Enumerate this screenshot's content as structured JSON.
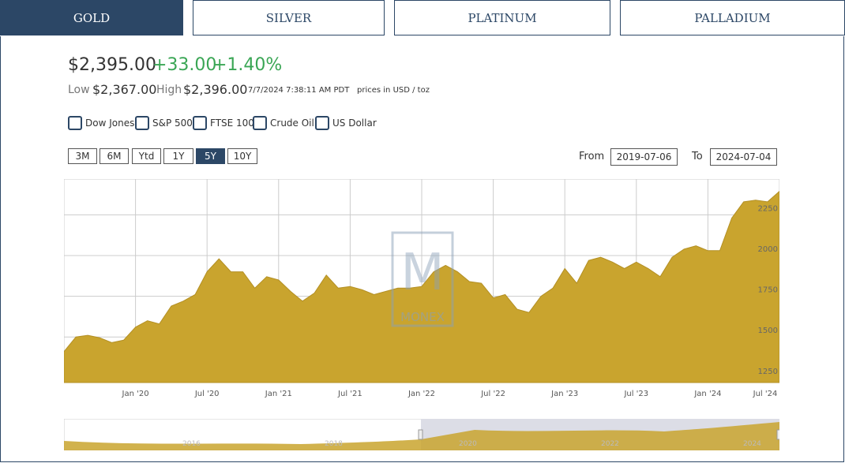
{
  "tabs": [
    "GOLD",
    "SILVER",
    "PLATINUM",
    "PALLADIUM"
  ],
  "header": {
    "price": "$2,395.00",
    "change": "+33.00",
    "change_pct": "+1.40%",
    "low_label": "Low",
    "low": "$2,367.00",
    "high_label": "High",
    "high": "$2,396.00",
    "timestamp": "7/7/2024 7:38:11 AM PDT",
    "units": "prices in USD / toz"
  },
  "compare": [
    "Dow Jones",
    "S&P 500",
    "FTSE 100",
    "Crude Oil",
    "US Dollar"
  ],
  "ranges": [
    "3M",
    "6M",
    "Ytd",
    "1Y",
    "5Y",
    "10Y"
  ],
  "dates": {
    "from_label": "From",
    "from": "2019-07-06",
    "to_label": "To",
    "to": "2024-07-04"
  },
  "watermark": "MONEX",
  "navigator": {
    "labels": [
      "2016",
      "2018",
      "2020",
      "2022",
      "2024"
    ]
  },
  "chart_data": {
    "type": "area",
    "x": [
      "2019-07",
      "2019-08",
      "2019-09",
      "2019-10",
      "2019-11",
      "2019-12",
      "2020-01",
      "2020-02",
      "2020-03",
      "2020-04",
      "2020-05",
      "2020-06",
      "2020-07",
      "2020-08",
      "2020-09",
      "2020-10",
      "2020-11",
      "2020-12",
      "2021-01",
      "2021-02",
      "2021-03",
      "2021-04",
      "2021-05",
      "2021-06",
      "2021-07",
      "2021-08",
      "2021-09",
      "2021-10",
      "2021-11",
      "2021-12",
      "2022-01",
      "2022-02",
      "2022-03",
      "2022-04",
      "2022-05",
      "2022-06",
      "2022-07",
      "2022-08",
      "2022-09",
      "2022-10",
      "2022-11",
      "2022-12",
      "2023-01",
      "2023-02",
      "2023-03",
      "2023-04",
      "2023-05",
      "2023-06",
      "2023-07",
      "2023-08",
      "2023-09",
      "2023-10",
      "2023-11",
      "2023-12",
      "2024-01",
      "2024-02",
      "2024-03",
      "2024-04",
      "2024-05",
      "2024-06",
      "2024-07"
    ],
    "series": [
      {
        "name": "Gold",
        "color": "#c9a42e",
        "values": [
          1410,
          1500,
          1510,
          1495,
          1465,
          1480,
          1560,
          1600,
          1580,
          1690,
          1720,
          1760,
          1900,
          1980,
          1900,
          1900,
          1800,
          1870,
          1850,
          1780,
          1720,
          1770,
          1880,
          1800,
          1810,
          1790,
          1760,
          1780,
          1800,
          1800,
          1810,
          1900,
          1940,
          1900,
          1840,
          1830,
          1740,
          1760,
          1670,
          1650,
          1750,
          1800,
          1920,
          1830,
          1970,
          1990,
          1960,
          1920,
          1960,
          1920,
          1870,
          1990,
          2040,
          2060,
          2030,
          2030,
          2230,
          2330,
          2340,
          2330,
          2395
        ]
      }
    ],
    "ylim": [
      1220,
      2470
    ],
    "yticks": [
      1250,
      1500,
      1750,
      2000,
      2250
    ],
    "xticks": [
      {
        "value": "2020-01",
        "label": "Jan '20"
      },
      {
        "value": "2020-07",
        "label": "Jul '20"
      },
      {
        "value": "2021-01",
        "label": "Jan '21"
      },
      {
        "value": "2021-07",
        "label": "Jul '21"
      },
      {
        "value": "2022-01",
        "label": "Jan '22"
      },
      {
        "value": "2022-07",
        "label": "Jul '22"
      },
      {
        "value": "2023-01",
        "label": "Jan '23"
      },
      {
        "value": "2023-07",
        "label": "Jul '23"
      },
      {
        "value": "2024-01",
        "label": "Jan '24"
      },
      {
        "value": "2024-07",
        "label": "Jul '24"
      }
    ],
    "grid": true
  }
}
